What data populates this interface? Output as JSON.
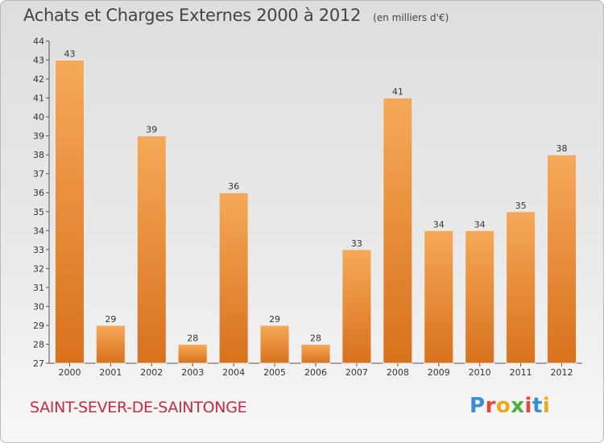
{
  "header": {
    "title": "Achats et Charges Externes 2000 à 2012",
    "unit": "(en milliers d'€)"
  },
  "footer": {
    "city": "SAINT-SEVER-DE-SAINTONGE",
    "logo_text": "Proxiti"
  },
  "colors": {
    "bar_top": "#f6a959",
    "bar_bottom": "#d8711c",
    "city": "#c72a44",
    "logo": [
      "#3a8fd3",
      "#e8453c",
      "#f0a81d",
      "#4cae3e",
      "#e8453c",
      "#3a8fd3",
      "#f0a81d"
    ]
  },
  "chart_data": {
    "type": "bar",
    "categories": [
      "2000",
      "2001",
      "2002",
      "2003",
      "2004",
      "2005",
      "2006",
      "2007",
      "2008",
      "2009",
      "2010",
      "2011",
      "2012"
    ],
    "values": [
      43,
      29,
      39,
      28,
      36,
      29,
      28,
      33,
      41,
      34,
      34,
      35,
      38
    ],
    "ylim": [
      27,
      44
    ],
    "yticks": [
      27,
      28,
      29,
      30,
      31,
      32,
      33,
      34,
      35,
      36,
      37,
      38,
      39,
      40,
      41,
      42,
      43,
      44
    ],
    "grid": false,
    "legend": "none"
  }
}
